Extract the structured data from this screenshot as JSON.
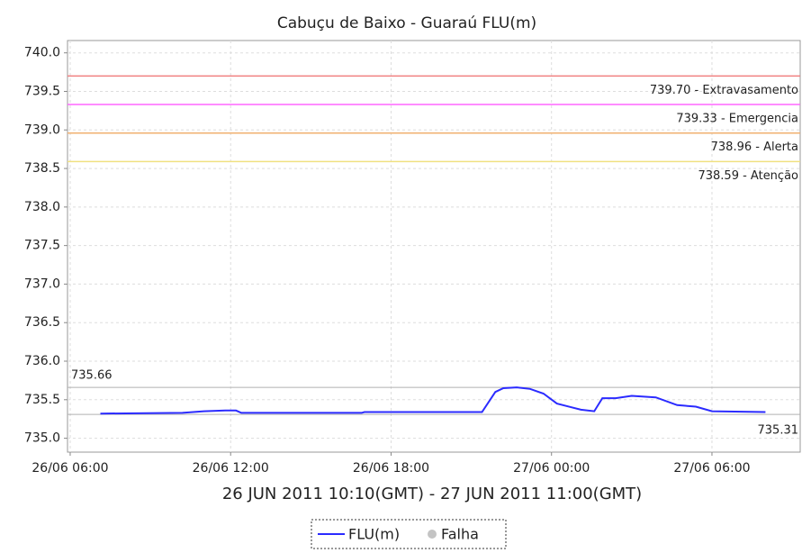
{
  "chart_data": {
    "type": "line",
    "title": "Cabuçu de Baixo - Guaraú FLU(m)",
    "subtitle": "26 JUN 2011 10:10(GMT) - 27 JUN 2011 11:00(GMT)",
    "xlim": [
      5.9,
      33.3
    ],
    "xticks": [
      {
        "value": 6,
        "label": "26/06 06:00"
      },
      {
        "value": 12,
        "label": "26/06 12:00"
      },
      {
        "value": 18,
        "label": "26/06 18:00"
      },
      {
        "value": 24,
        "label": "27/06 00:00"
      },
      {
        "value": 30,
        "label": "27/06 06:00"
      }
    ],
    "ylim": [
      734.82,
      740.16
    ],
    "yticks": [
      {
        "value": 735,
        "label": "735.0"
      },
      735.5,
      {
        "value": 736,
        "label": "736.0"
      },
      736.5,
      {
        "value": 737,
        "label": "737.0"
      },
      737.5,
      {
        "value": 738,
        "label": "738.0"
      },
      738.5,
      {
        "value": 739,
        "label": "739.0"
      },
      739.5,
      {
        "value": 740,
        "label": "740.0"
      }
    ],
    "grid": true,
    "series": [
      {
        "name": "FLU(m)",
        "color": "#2b2bff",
        "x": [
          7.13,
          10.2,
          11.0,
          11.8,
          12.2,
          12.4,
          16.9,
          17.0,
          21.4,
          21.9,
          22.2,
          22.7,
          23.2,
          23.7,
          24.2,
          25.1,
          25.6,
          25.9,
          26.4,
          27.0,
          27.9,
          28.7,
          29.4,
          30.0,
          32.0
        ],
        "values": [
          735.32,
          735.33,
          735.35,
          735.36,
          735.36,
          735.33,
          735.33,
          735.34,
          735.34,
          735.6,
          735.65,
          735.66,
          735.64,
          735.58,
          735.45,
          735.37,
          735.35,
          735.52,
          735.52,
          735.55,
          735.53,
          735.43,
          735.41,
          735.35,
          735.34
        ]
      }
    ],
    "fault_legend": {
      "name": "Falha",
      "color": "#c4c4c4"
    },
    "thresholds": [
      {
        "value": 739.7,
        "label": "739.70 - Extravasamento",
        "color": "#f08080"
      },
      {
        "value": 739.33,
        "label": "739.33 - Emergencia",
        "color": "#ff66ff"
      },
      {
        "value": 738.96,
        "label": "738.96 - Alerta",
        "color": "#f0b070"
      },
      {
        "value": 738.59,
        "label": "738.59 - Atenção",
        "color": "#f0e080"
      }
    ],
    "extremes": [
      {
        "value": 735.66,
        "label": "735.66",
        "color": "#b0b0b0"
      },
      {
        "value": 735.31,
        "label": "735.31",
        "color": "#b0b0b0"
      }
    ]
  }
}
